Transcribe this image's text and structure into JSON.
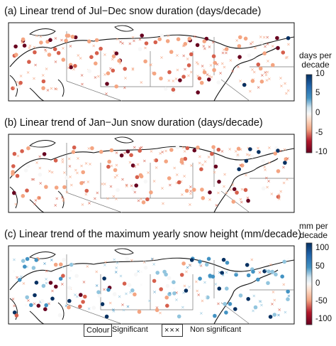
{
  "chart_data": [
    {
      "type": "scatter",
      "title": "(a) Linear trend of Jul−Dec snow duration (days/decade)",
      "colorbar_label": [
        "days per",
        "decade"
      ],
      "colorbar_ticks": [
        "10",
        "5",
        "0",
        "-5",
        "-10"
      ],
      "colorbar_range": [
        -10,
        10
      ],
      "colorscale": "diverging: dark red (negative) → white (0) → dark blue (positive)",
      "dominant_sign": "negative",
      "geography": "Northern Eurasia map"
    },
    {
      "type": "scatter",
      "title": "(b) Linear trend of Jan−Jun snow duration (days/decade)",
      "colorbar_label": [
        "days per",
        "decade"
      ],
      "colorbar_ticks": [
        "10",
        "5",
        "0",
        "-5",
        "-10"
      ],
      "colorbar_range": [
        -10,
        10
      ],
      "colorscale": "diverging: dark red (negative) → white (0) → dark blue (positive)",
      "dominant_sign": "negative",
      "geography": "Northern Eurasia map"
    },
    {
      "type": "scatter",
      "title": "(c) Linear trend of the maximum yearly snow height (mm/decade)",
      "colorbar_label": [
        "mm per",
        "decade"
      ],
      "colorbar_ticks": [
        "100",
        "50",
        "0",
        "-50",
        "-100"
      ],
      "colorbar_range": [
        -120,
        120
      ],
      "colorscale": "diverging: dark red (negative) → white (0) → dark blue (positive)",
      "dominant_sign": "mixed",
      "geography": "Northern Eurasia map"
    }
  ],
  "legend": {
    "significant_box": "Colour",
    "significant_label": "Significant",
    "nonsig_symbol": "×××",
    "nonsig_label": "Non significant"
  },
  "colors": {
    "dark_red": "#67001f",
    "red": "#d6604d",
    "light_red": "#f4a582",
    "white": "#f7f7f7",
    "light_blue": "#92c5de",
    "blue": "#4393c3",
    "dark_blue": "#053061"
  }
}
